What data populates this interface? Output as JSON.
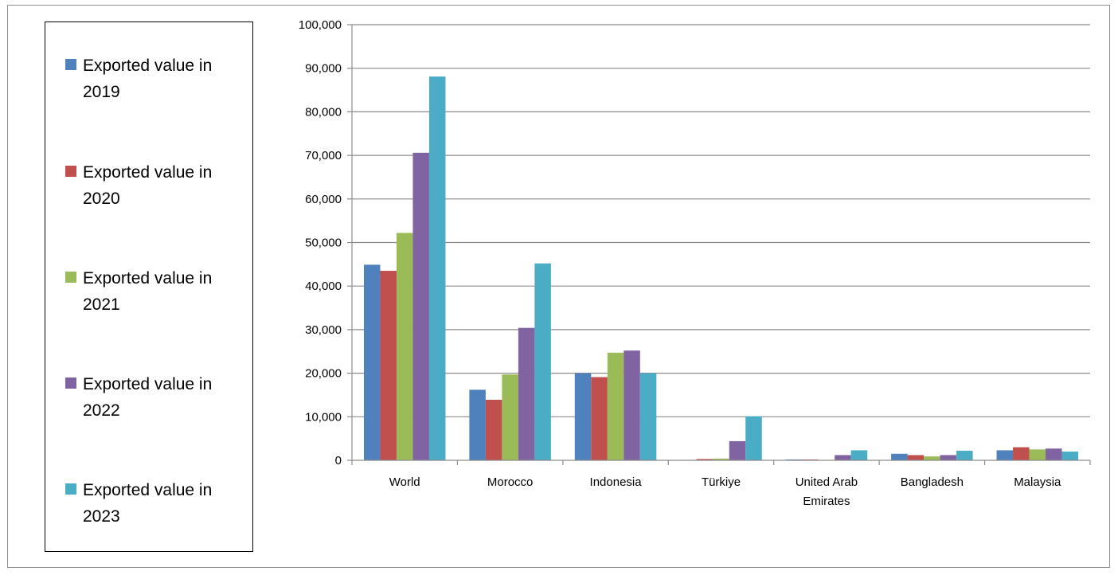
{
  "chart_data": {
    "type": "bar",
    "categories": [
      "World",
      "Morocco",
      "Indonesia",
      "Türkiye",
      "United Arab Emirates",
      "Bangladesh",
      "Malaysia"
    ],
    "category_lines": [
      [
        "World"
      ],
      [
        "Morocco"
      ],
      [
        "Indonesia"
      ],
      [
        "Türkiye"
      ],
      [
        "United Arab",
        "Emirates"
      ],
      [
        "Bangladesh"
      ],
      [
        "Malaysia"
      ]
    ],
    "series": [
      {
        "name": "Exported value in 2019",
        "name_lines": [
          "Exported value in",
          "2019"
        ],
        "color": "#4f81bd",
        "values": [
          44900,
          16200,
          20000,
          100,
          200,
          1500,
          2300
        ]
      },
      {
        "name": "Exported value in 2020",
        "name_lines": [
          "Exported value in",
          "2020"
        ],
        "color": "#c0504d",
        "values": [
          43500,
          13900,
          19100,
          300,
          200,
          1200,
          3000
        ]
      },
      {
        "name": "Exported value in 2021",
        "name_lines": [
          "Exported value in",
          "2021"
        ],
        "color": "#9bbb59",
        "values": [
          52200,
          19700,
          24700,
          400,
          100,
          900,
          2500
        ]
      },
      {
        "name": "Exported value in 2022",
        "name_lines": [
          "Exported value in",
          "2022"
        ],
        "color": "#8064a2",
        "values": [
          70600,
          30400,
          25200,
          4400,
          1200,
          1200,
          2700
        ]
      },
      {
        "name": "Exported value in 2023",
        "name_lines": [
          "Exported value in",
          "2023"
        ],
        "color": "#4bacc6",
        "values": [
          88100,
          45200,
          20000,
          10100,
          2300,
          2200,
          2000
        ]
      }
    ],
    "yticks": [
      "0",
      "10,000",
      "20,000",
      "30,000",
      "40,000",
      "50,000",
      "60,000",
      "70,000",
      "80,000",
      "90,000",
      "100,000"
    ],
    "ylim": [
      0,
      100000
    ],
    "grid": true,
    "legend_position": "left",
    "title": "",
    "xlabel": "",
    "ylabel": ""
  }
}
